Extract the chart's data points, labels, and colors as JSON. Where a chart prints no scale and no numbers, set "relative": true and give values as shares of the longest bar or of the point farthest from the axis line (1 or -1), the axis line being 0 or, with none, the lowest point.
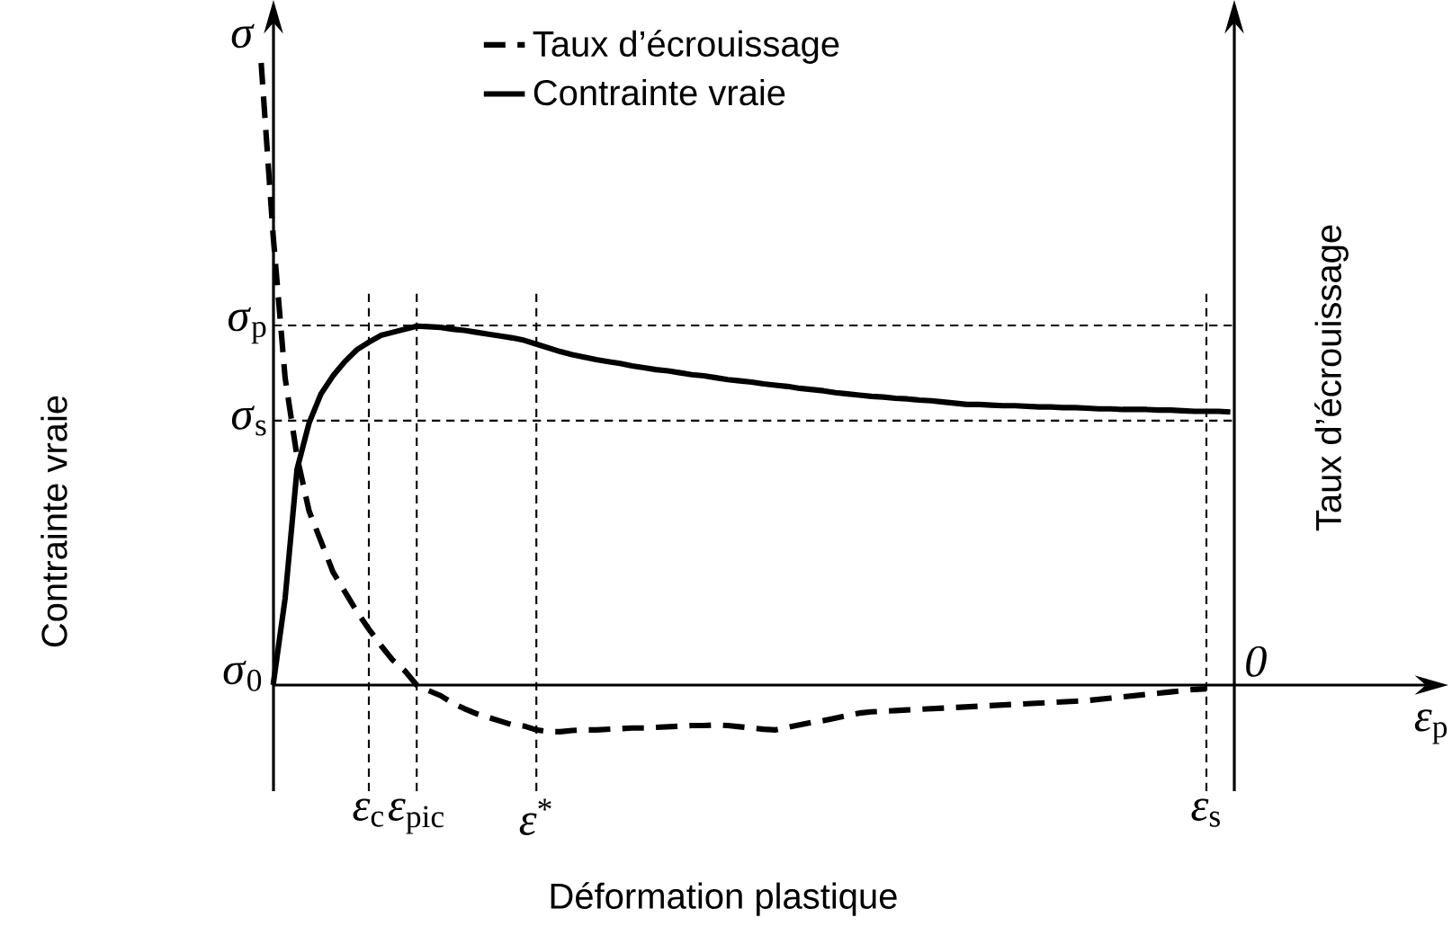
{
  "chart_data": {
    "type": "line",
    "relative": true,
    "xlabel": "Déformation plastique",
    "ylabel": "Contrainte vraie",
    "y2label": "Taux d’écrouissage",
    "legend": "top",
    "grid": "x",
    "categories": [
      null,
      null,
      null,
      null,
      null,
      null,
      null,
      null,
      null,
      null,
      "*ε*$_{c}$",
      null,
      null,
      null,
      "*ε*$_{pic}$",
      null,
      null,
      null,
      null,
      null,
      null,
      null,
      null,
      null,
      "*ε*$^{*}$",
      null,
      null,
      null,
      null,
      null,
      null,
      null,
      null,
      null,
      null,
      null,
      null,
      null,
      null,
      null,
      null,
      null,
      null,
      null,
      null,
      null,
      null,
      null,
      null,
      null,
      null,
      null,
      null,
      null,
      null,
      null,
      null,
      null,
      null,
      null,
      null,
      null,
      null,
      null,
      null,
      null,
      null,
      null,
      null,
      null,
      null,
      null,
      null,
      null,
      null,
      null,
      null,
      null,
      null,
      null,
      "*ε*$_{s}$",
      null,
      null
    ],
    "series": [
      {
        "name": "Taux d’écrouissage",
        "line_style": "dashed",
        "color": "#000000",
        "values": [
          null,
          1.0,
          0.723,
          0.494,
          0.367,
          0.28,
          0.231,
          0.182,
          0.15,
          0.118,
          0.09,
          0.064,
          0.04,
          0.023,
          0,
          -0.009,
          -0.017,
          -0.029,
          -0.038,
          -0.046,
          -0.052,
          -0.058,
          -0.064,
          -0.066,
          -0.072,
          -0.075,
          -0.075,
          -0.073,
          -0.072,
          -0.072,
          -0.071,
          -0.07,
          -0.069,
          -0.069,
          -0.068,
          -0.067,
          -0.066,
          -0.065,
          -0.065,
          -0.064,
          -0.065,
          -0.067,
          -0.069,
          -0.071,
          -0.072,
          -0.068,
          -0.064,
          -0.06,
          -0.057,
          -0.053,
          -0.049,
          -0.045,
          -0.043,
          -0.042,
          -0.041,
          -0.04,
          -0.039,
          -0.038,
          -0.037,
          -0.036,
          -0.035,
          -0.034,
          -0.033,
          -0.032,
          -0.031,
          -0.03,
          -0.029,
          -0.028,
          -0.027,
          -0.026,
          -0.025,
          -0.023,
          -0.021,
          -0.019,
          -0.017,
          -0.015,
          -0.013,
          -0.011,
          -0.009,
          -0.007,
          -0.006,
          null,
          null
        ]
      },
      {
        "name": "Contrainte vraie",
        "line_style": "solid",
        "color": "#000000",
        "values": [
          null,
          null,
          0,
          0.139,
          0.347,
          0.421,
          0.468,
          0.497,
          0.52,
          0.539,
          0.551,
          0.562,
          0.567,
          0.572,
          0.577,
          0.576,
          0.575,
          0.572,
          0.57,
          0.567,
          0.564,
          0.561,
          0.558,
          0.554,
          0.548,
          0.542,
          0.536,
          0.531,
          0.527,
          0.523,
          0.52,
          0.517,
          0.513,
          0.51,
          0.507,
          0.505,
          0.502,
          0.499,
          0.497,
          0.494,
          0.491,
          0.489,
          0.487,
          0.484,
          0.482,
          0.48,
          0.477,
          0.475,
          0.473,
          0.47,
          0.468,
          0.466,
          0.464,
          0.463,
          0.461,
          0.46,
          0.458,
          0.457,
          0.455,
          0.453,
          0.451,
          0.451,
          0.45,
          0.449,
          0.449,
          0.448,
          0.447,
          0.447,
          0.446,
          0.446,
          0.445,
          0.444,
          0.444,
          0.443,
          0.443,
          0.443,
          0.442,
          0.442,
          0.441,
          0.44,
          0.44,
          0.44,
          0.439
        ]
      }
    ],
    "ref_lines": [
      {
        "axis": "y",
        "value": 0.578,
        "label": "*σ*$_{p}$",
        "line_style": "dashed"
      },
      {
        "axis": "y",
        "value": 0.425,
        "label": "*σ*$_{s}$",
        "line_style": "dashed"
      }
    ],
    "annotations": [
      "*σ*",
      "*ε*$_{p}$",
      "*σ*$_{0}$",
      "*0*"
    ]
  }
}
